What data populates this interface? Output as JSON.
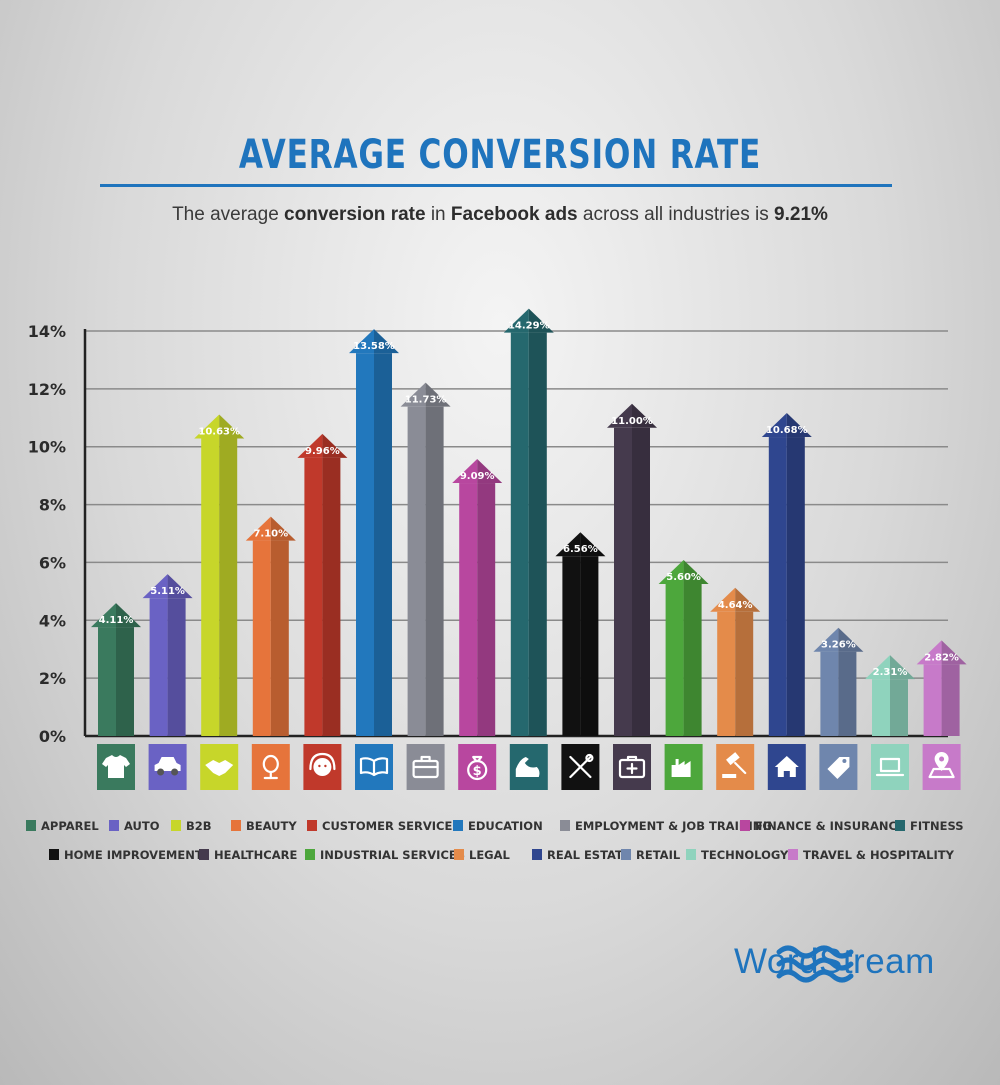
{
  "title": "AVERAGE CONVERSION RATE",
  "subtitle": {
    "part1": "The average ",
    "bold1": "conversion rate",
    "part2": " in ",
    "bold2": "Facebook ads",
    "part3": " across all industries is ",
    "bold3": "9.21%"
  },
  "brand": "WordStream",
  "colors": {
    "accent": "#1f74bd"
  },
  "chart_data": {
    "type": "bar",
    "ylim": [
      0,
      14
    ],
    "yticks": [
      0,
      2,
      4,
      6,
      8,
      10,
      12,
      14
    ],
    "ytick_labels": [
      "0%",
      "2%",
      "4%",
      "6%",
      "8%",
      "10%",
      "12%",
      "14%"
    ],
    "grid": true,
    "legend_position": "bottom",
    "categories": [
      "APPAREL",
      "AUTO",
      "B2B",
      "BEAUTY",
      "CUSTOMER SERVICES",
      "EDUCATION",
      "EMPLOYMENT & JOB TRAINING",
      "FINANCE & INSURANCE",
      "FITNESS",
      "HOME IMPROVEMENT",
      "HEALTHCARE",
      "INDUSTRIAL SERVICES",
      "LEGAL",
      "REAL ESTATE",
      "RETAIL",
      "TECHNOLOGY",
      "TRAVEL & HOSPITALITY"
    ],
    "values": [
      4.11,
      5.11,
      10.63,
      7.1,
      9.96,
      13.58,
      11.73,
      9.09,
      14.29,
      6.56,
      11.0,
      5.6,
      4.64,
      10.68,
      3.26,
      2.31,
      2.82
    ],
    "value_labels": [
      "4.11%",
      "5.11%",
      "10.63%",
      "7.10%",
      "9.96%",
      "13.58%",
      "11.73%",
      "9.09%",
      "14.29%",
      "6.56%",
      "11.00%",
      "5.60%",
      "4.64%",
      "10.68%",
      "3.26%",
      "2.31%",
      "2.82%"
    ],
    "colors": [
      "#3a7a5e",
      "#6a62c4",
      "#c7d62a",
      "#e6743b",
      "#c0392b",
      "#2278bd",
      "#8a8c96",
      "#b8479f",
      "#25686e",
      "#111111",
      "#453a4d",
      "#4da73c",
      "#e48b4a",
      "#2f468f",
      "#6f86ad",
      "#8fd3bd",
      "#c77ac9"
    ],
    "icons": [
      "shirt-icon",
      "car-icon",
      "handshake-icon",
      "mirror-icon",
      "headset-icon",
      "book-icon",
      "briefcase-icon",
      "money-bag-icon",
      "arm-muscle-icon",
      "tools-icon",
      "first-aid-kit-icon",
      "factory-icon",
      "gavel-icon",
      "house-icon",
      "price-tag-icon",
      "laptop-icon",
      "map-pin-icon"
    ]
  }
}
